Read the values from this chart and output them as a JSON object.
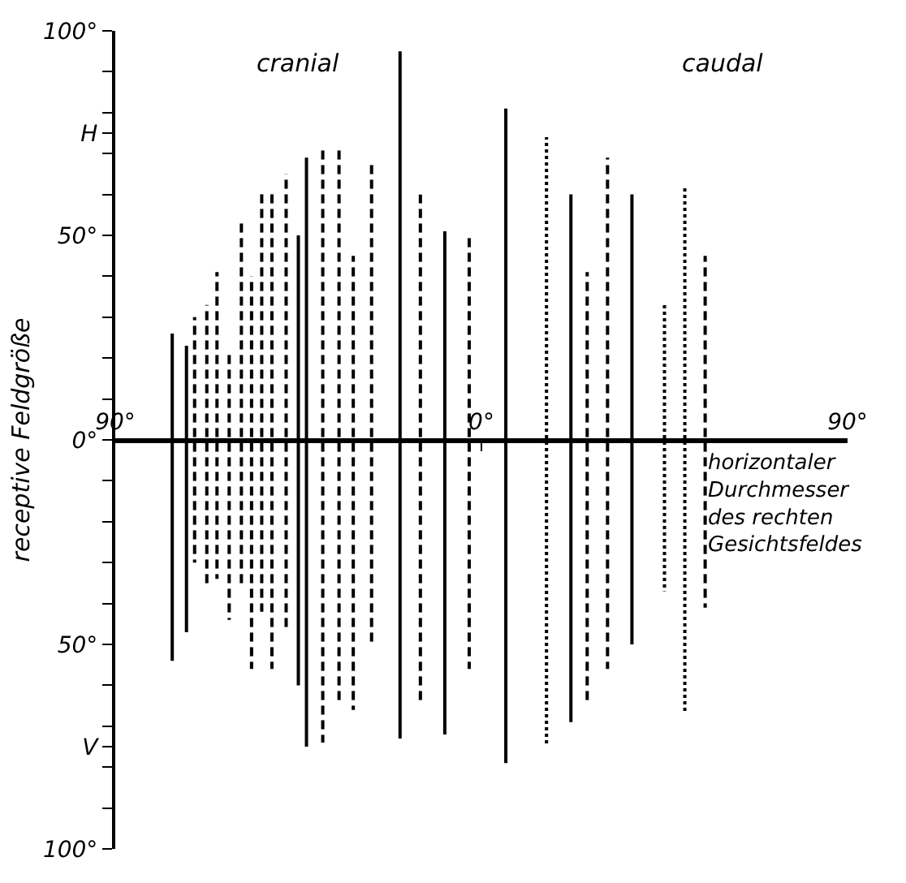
{
  "chart_data": {
    "type": "bar",
    "ylabel": "receptive Feldgröße",
    "annotations": [
      "cranial",
      "caudal",
      "horizontaler\nDurchmesser\ndes rechten\nGesichtsfeldes"
    ],
    "xlim": [
      -90,
      90
    ],
    "xticks": [
      {
        "value": -90,
        "label": "90°"
      },
      {
        "value": 0,
        "label": "0°"
      },
      {
        "value": 90,
        "label": "90°"
      }
    ],
    "ylim": [
      -100,
      100
    ],
    "yticks": [
      {
        "value": 100,
        "label": "100°"
      },
      {
        "value": 90,
        "label": null
      },
      {
        "value": 80,
        "label": null
      },
      {
        "value": 75,
        "label": "H"
      },
      {
        "value": 70,
        "label": null
      },
      {
        "value": 60,
        "label": null
      },
      {
        "value": 50,
        "label": "50°"
      },
      {
        "value": 40,
        "label": null
      },
      {
        "value": 30,
        "label": null
      },
      {
        "value": 20,
        "label": null
      },
      {
        "value": 10,
        "label": null
      },
      {
        "value": 0,
        "label": "0°"
      },
      {
        "value": -10,
        "label": null
      },
      {
        "value": -20,
        "label": null
      },
      {
        "value": -30,
        "label": null
      },
      {
        "value": -40,
        "label": null
      },
      {
        "value": -50,
        "label": "50°"
      },
      {
        "value": -60,
        "label": null
      },
      {
        "value": -70,
        "label": null
      },
      {
        "value": -75,
        "label": "V"
      },
      {
        "value": -80,
        "label": null
      },
      {
        "value": -90,
        "label": null
      },
      {
        "value": -100,
        "label": "100°"
      }
    ],
    "series": [
      {
        "color": "#000000",
        "line_style": "solid",
        "x": [
          -76,
          -72.5,
          -45,
          -43,
          -20,
          -9,
          6,
          22,
          37
        ],
        "base": [
          -54,
          -47,
          -60,
          -75,
          -73,
          -72,
          -79,
          -69,
          -50
        ],
        "values": [
          80,
          70,
          110,
          144,
          168,
          123,
          160,
          129,
          110
        ]
      },
      {
        "color": "#000000",
        "line_style": "dashed",
        "x": [
          -70.5,
          -67.5,
          -65,
          -62,
          -59,
          -56.5,
          -54,
          -51.5,
          -48,
          -39,
          -35,
          -31.5,
          -27,
          -15,
          -3,
          26,
          31,
          55
        ],
        "base": [
          -30,
          -36,
          -34,
          -44,
          -36,
          -56,
          -42,
          -56,
          -47,
          -74,
          -64,
          -66,
          -50,
          -64,
          -56,
          -64,
          -56,
          -41
        ],
        "values": [
          60,
          69,
          75,
          66,
          89,
          96,
          103,
          117,
          112,
          146,
          135,
          111,
          118,
          124,
          106,
          105,
          125,
          86
        ]
      },
      {
        "color": "#000000",
        "line_style": "dotted",
        "x": [
          16,
          45,
          50
        ],
        "base": [
          -75,
          -37,
          -67
        ],
        "values": [
          149,
          70,
          129
        ]
      }
    ]
  }
}
